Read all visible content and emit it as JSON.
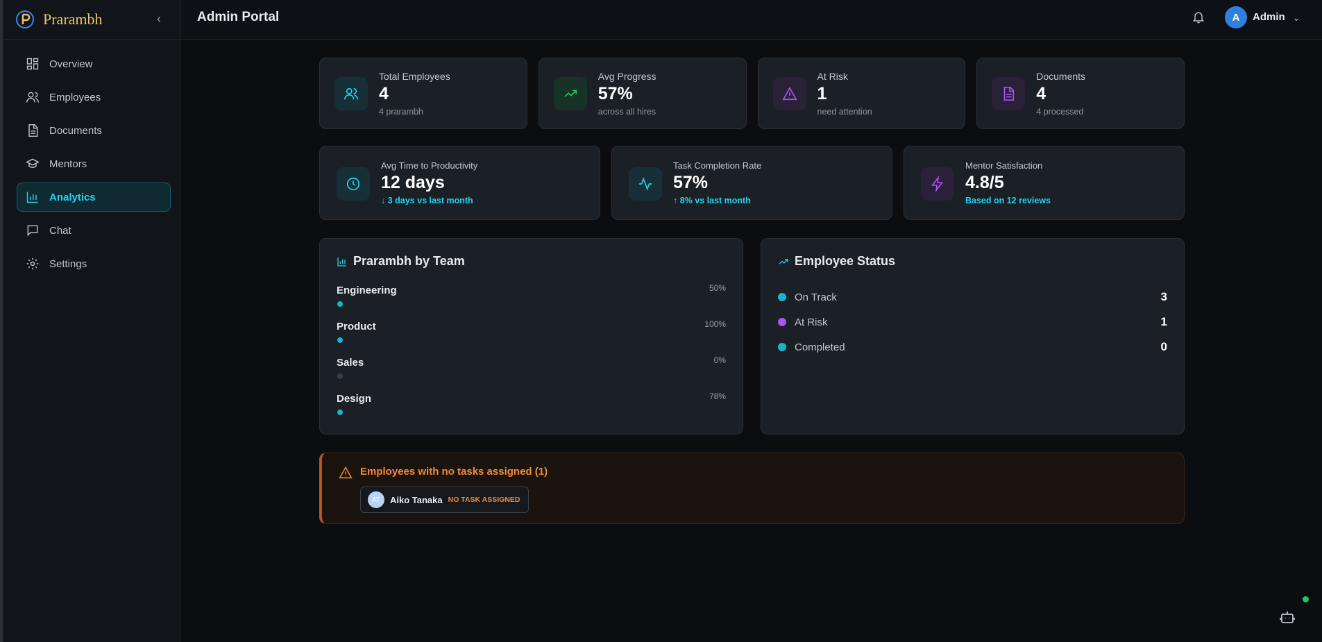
{
  "sidebar": {
    "brand": "Prarambh",
    "nav": [
      "Overview",
      "Employees",
      "Documents",
      "Mentors",
      "Analytics",
      "Chat",
      "Settings"
    ]
  },
  "header": {
    "title": "Admin Portal",
    "avatar": "A",
    "user": "Admin"
  },
  "stats": [
    {
      "label": "Total Employees",
      "value": 4,
      "note": "4 prarambh"
    },
    {
      "label": "Avg Progress",
      "value": "57%",
      "note": "across all hires"
    },
    {
      "label": "At Risk",
      "value": 1,
      "note": "need attention"
    },
    {
      "label": "Documents",
      "value": 4,
      "note": "4 processed"
    }
  ],
  "metrics": [
    {
      "label": "Avg Time to Productivity",
      "value": "12 days",
      "note": "↓ 3 days vs last month"
    },
    {
      "label": "Task Completion Rate",
      "value": "57%",
      "note": "↑ 8% vs last month"
    },
    {
      "label": "Mentor Satisfaction",
      "value": "4.8/5",
      "note": "Based on 12 reviews"
    }
  ],
  "team": {
    "title": "Prarambh by Team",
    "rows": [
      {
        "name": "Engineering",
        "percent": "50%"
      },
      {
        "name": "Product",
        "percent": "100%"
      },
      {
        "name": "Sales",
        "percent": "0%"
      },
      {
        "name": "Design",
        "percent": "78%"
      }
    ]
  },
  "status": {
    "title": "Employee Status",
    "rows": [
      {
        "name": "On Track",
        "count": 3
      },
      {
        "name": "At Risk",
        "count": 1
      },
      {
        "name": "Completed",
        "count": 0
      }
    ]
  },
  "alert": {
    "title": "Employees with no tasks assigned (1)",
    "employee": {
      "initials": "AT",
      "name": "Aiko Tanaka",
      "tag": "NO TASK ASSIGNED"
    }
  }
}
